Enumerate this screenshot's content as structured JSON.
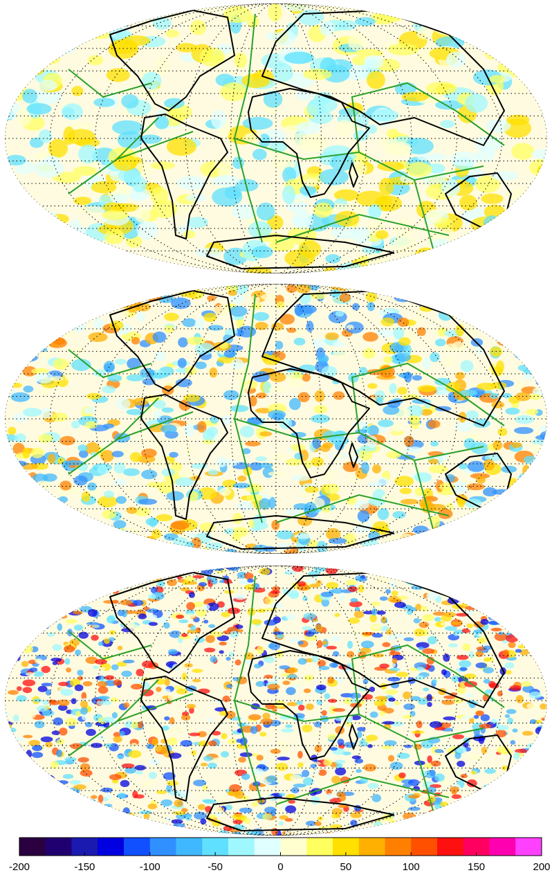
{
  "colorbar": {
    "lim": [
      -200,
      200
    ],
    "ticks": [
      -200,
      -150,
      -100,
      -50,
      0,
      50,
      100,
      150,
      200
    ],
    "colors": [
      "#2a0040",
      "#200070",
      "#1a1ab0",
      "#0000e0",
      "#1050ff",
      "#3090ff",
      "#40b8ff",
      "#60e0ff",
      "#a0f8ff",
      "#e0ffff",
      "#ffffd0",
      "#ffff60",
      "#ffe000",
      "#ffb000",
      "#ff8000",
      "#ff5000",
      "#ff1010",
      "#ff0060",
      "#ff00b0",
      "#ff40ff"
    ]
  }
}
